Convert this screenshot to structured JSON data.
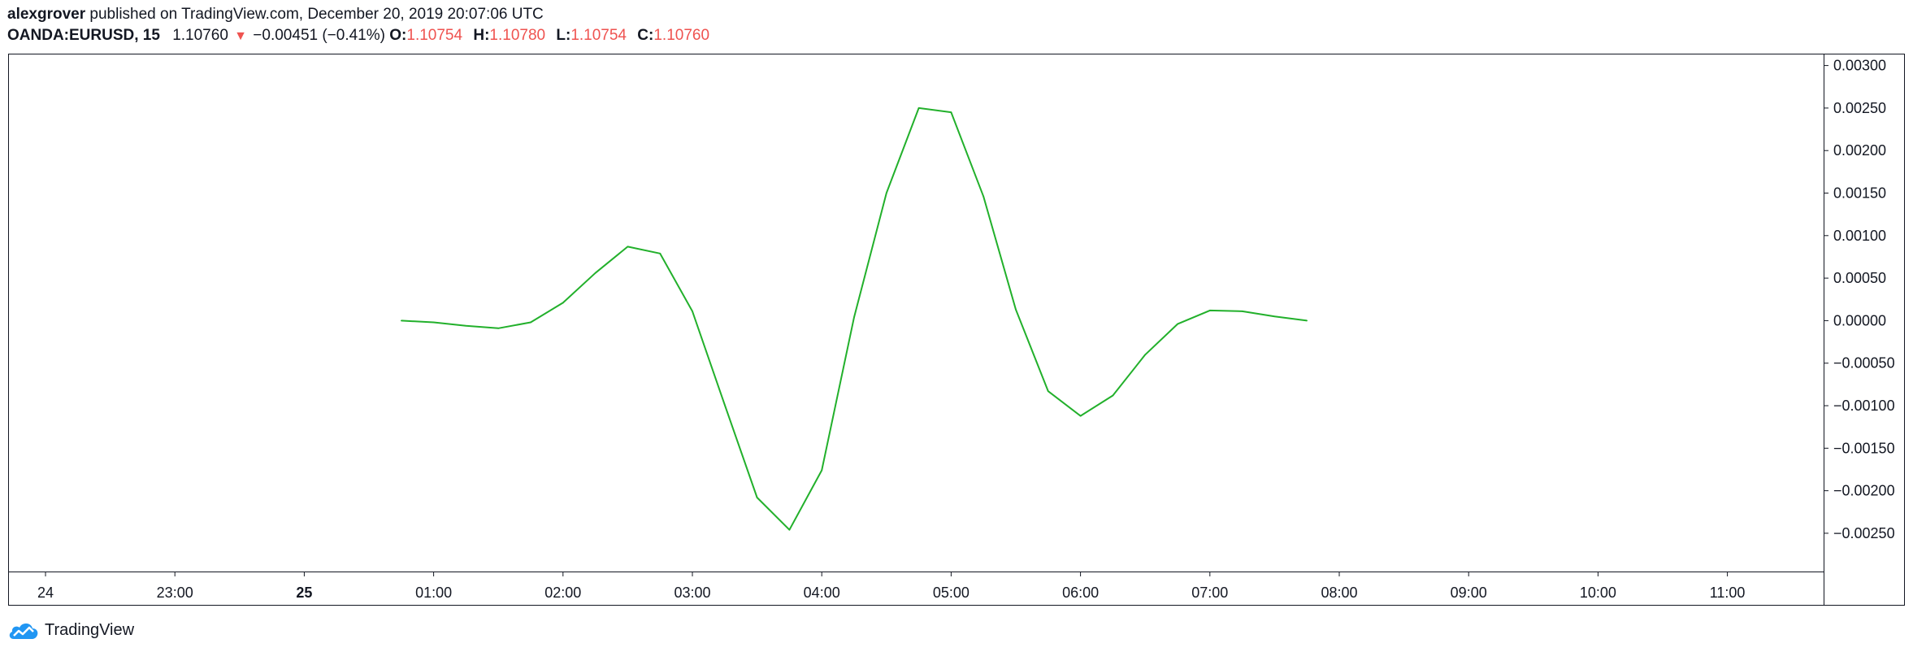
{
  "header": {
    "user": "alexgrover",
    "published_text": " published on TradingView.com, December 20, 2019 20:07:06 UTC",
    "symbol": "OANDA:EURUSD, 15",
    "last": "1.10760",
    "change": "−0.00451 (−0.41%)",
    "o_label": "O:",
    "o_value": "1.10754",
    "h_label": "H:",
    "h_value": "1.10780",
    "l_label": "L:",
    "l_value": "1.10754",
    "c_label": "C:",
    "c_value": "1.10760",
    "down_icon": "triangle-down-icon"
  },
  "footer": {
    "brand": "TradingView",
    "logo_icon": "tradingview-cloud-icon"
  },
  "colors": {
    "line": "#22b02b",
    "down": "#ef5350",
    "frame": "#131722",
    "text": "#131722",
    "logo": "#2196f3"
  },
  "chart_data": {
    "type": "line",
    "x_tick_labels": [
      "24",
      "23:00",
      "25",
      "01:00",
      "02:00",
      "03:00",
      "04:00",
      "05:00",
      "06:00",
      "07:00",
      "08:00",
      "09:00",
      "10:00",
      "11:00"
    ],
    "bold_x_ticks": [
      "25"
    ],
    "y_ticks": [
      0.003,
      0.0025,
      0.002,
      0.0015,
      0.001,
      0.0005,
      0,
      -0.0005,
      -0.001,
      -0.0015,
      -0.002,
      -0.0025
    ],
    "y_tick_labels": [
      "0.00300",
      "0.00250",
      "0.00200",
      "0.00150",
      "0.00100",
      "0.00050",
      "0.00000",
      "−0.00050",
      "−0.00100",
      "−0.00150",
      "−0.00200",
      "−0.00250"
    ],
    "ylim": [
      -0.00295,
      0.00313
    ],
    "grid": false,
    "series": [
      {
        "x": [
          "00:45",
          "01:00",
          "01:15",
          "01:30",
          "01:45",
          "02:00",
          "02:15",
          "02:30",
          "02:45",
          "03:00",
          "03:15",
          "03:30",
          "03:45",
          "04:00",
          "04:15",
          "04:30",
          "04:45",
          "05:00",
          "05:15",
          "05:30",
          "05:45",
          "06:00",
          "06:15",
          "06:30",
          "06:45",
          "07:00",
          "07:15",
          "07:30",
          "07:45"
        ],
        "values": [
          0.0,
          -2e-05,
          -6e-05,
          -9e-05,
          -2e-05,
          0.00021,
          0.00056,
          0.00087,
          0.00079,
          0.00011,
          -0.00099,
          -0.00208,
          -0.00246,
          -0.00176,
          4e-05,
          0.0015,
          0.0025,
          0.00245,
          0.00146,
          0.00013,
          -0.00083,
          -0.00112,
          -0.00088,
          -0.0004,
          -4e-05,
          0.00012,
          0.00011,
          5e-05,
          0.0
        ]
      }
    ]
  }
}
